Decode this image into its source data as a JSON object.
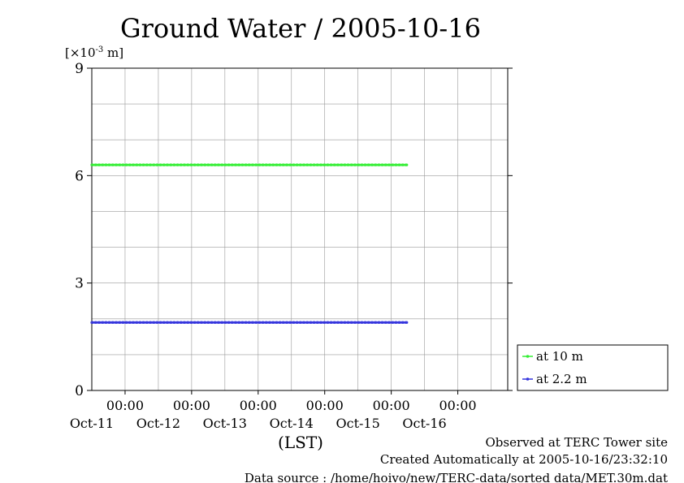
{
  "chart_data": {
    "type": "line",
    "title": "Ground Water / 2005-10-16",
    "ylabel": "[×10-3 m]",
    "xlabel": "(LST)",
    "ylim": [
      0,
      9
    ],
    "yticks": [
      0,
      3,
      6,
      9
    ],
    "xlim": [
      "2005-10-10T12:00",
      "2005-10-16T18:00"
    ],
    "xticks": [
      {
        "x": "2005-10-11T00:00",
        "time": "00:00",
        "date": "Oct-11"
      },
      {
        "x": "2005-10-12T00:00",
        "time": "00:00",
        "date": "Oct-12"
      },
      {
        "x": "2005-10-13T00:00",
        "time": "00:00",
        "date": "Oct-13"
      },
      {
        "x": "2005-10-14T00:00",
        "time": "00:00",
        "date": "Oct-14"
      },
      {
        "x": "2005-10-15T00:00",
        "time": "00:00",
        "date": "Oct-15"
      },
      {
        "x": "2005-10-16T00:00",
        "time": "00:00",
        "date": "Oct-16"
      }
    ],
    "grid": true,
    "legend_position": "bottom-right, outside plot",
    "series": [
      {
        "name": "at 10 m",
        "color": "#33ee33",
        "x": [
          "2005-10-10T12:00",
          "2005-10-15T06:00"
        ],
        "values": [
          6.3,
          6.3
        ]
      },
      {
        "name": "at 2.2 m",
        "color": "#3333dd",
        "x": [
          "2005-10-10T12:00",
          "2005-10-15T06:00"
        ],
        "values": [
          1.9,
          1.9
        ]
      }
    ]
  },
  "footer": {
    "line1": "Observed at TERC Tower site",
    "line2": "Created Automatically at 2005-10-16/23:32:10",
    "line3": "Data source : /home/hoivo/new/TERC-data/sorted  data/MET.30m.dat"
  }
}
